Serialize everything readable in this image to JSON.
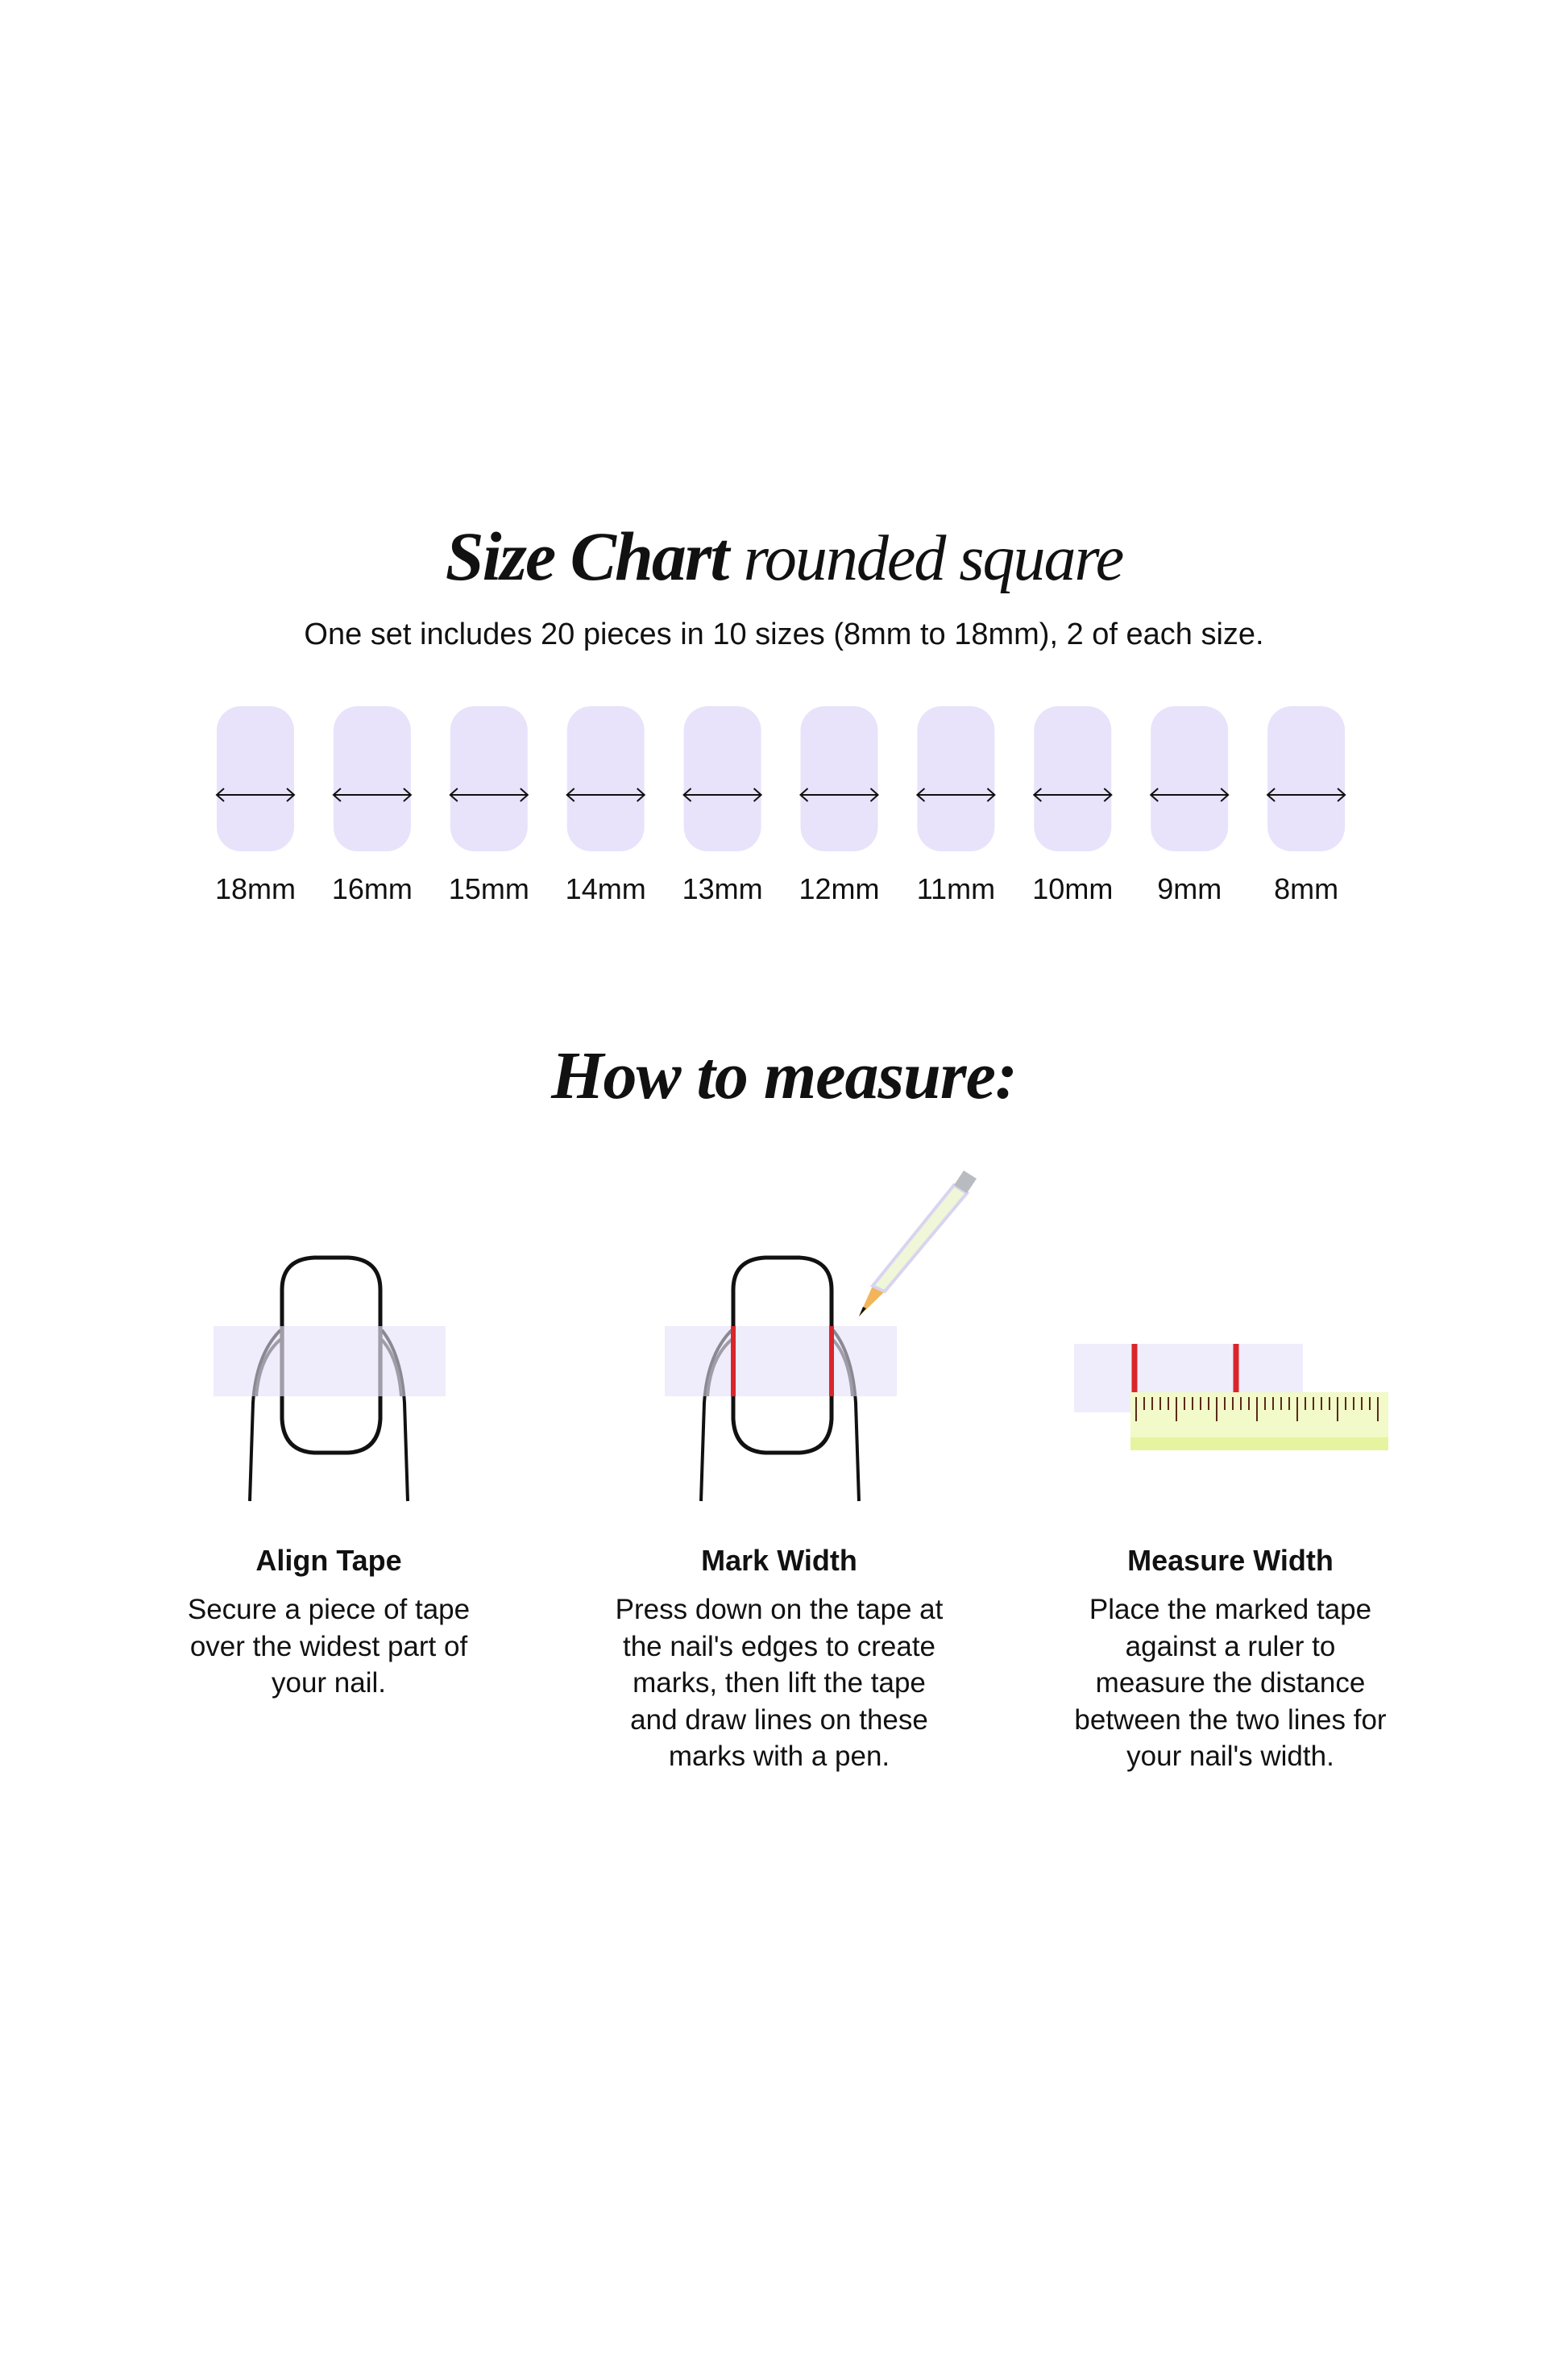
{
  "header": {
    "title_bold": "Size Chart",
    "title_light": "rounded square",
    "subtitle": "One set includes 20 pieces in 10 sizes (8mm to 18mm), 2 of each size."
  },
  "sizes": [
    "18mm",
    "16mm",
    "15mm",
    "14mm",
    "13mm",
    "12mm",
    "11mm",
    "10mm",
    "9mm",
    "8mm"
  ],
  "colors": {
    "nail_fill": "#e8e3fb",
    "tape": "#efecfc",
    "mark": "#d9262b",
    "ruler": "#f1fac8",
    "ruler_band": "#e6f4a0"
  },
  "howto": {
    "title": "How to measure:",
    "steps": [
      {
        "title": "Align Tape",
        "text": "Secure a piece of tape\nover the widest part of\nyour nail."
      },
      {
        "title": "Mark Width",
        "text": "Press down on the tape at\nthe nail's edges to create\nmarks, then lift the tape\nand draw lines on these\nmarks with a pen."
      },
      {
        "title": "Measure Width",
        "text": "Place the marked tape\nagainst a ruler to\nmeasure the distance\nbetween the two lines for\nyour nail's width."
      }
    ]
  }
}
